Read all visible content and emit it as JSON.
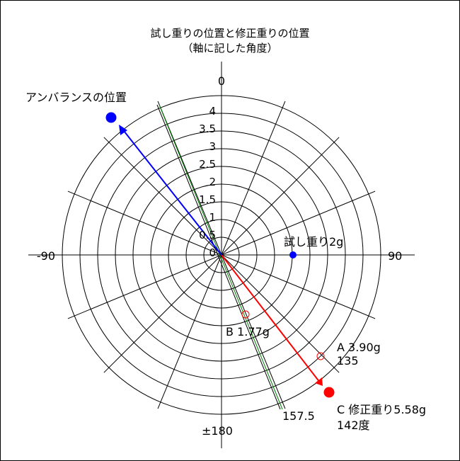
{
  "title": {
    "line1": "試し重りの位置と修正重りの位置",
    "line2": "（軸に記した角度）"
  },
  "axis_labels": {
    "top": "0",
    "left": "-90",
    "right": "90",
    "bottom": "±180"
  },
  "radial_ticks": [
    "4",
    "3.5",
    "3",
    "2.5",
    "2",
    "1.5",
    "1",
    "0.5",
    "0"
  ],
  "markers": {
    "unbalance": {
      "label": "アンバランスの位置",
      "color": "#0000ff"
    },
    "trial": {
      "label": "試し重り2g",
      "color": "#0000ff",
      "radius": 2,
      "angle": 90
    },
    "B": {
      "label": "B 1.77g",
      "color": "#ff0000"
    },
    "A": {
      "label1": "A 3.90g",
      "label2": "135",
      "color": "#ff0000"
    },
    "C": {
      "label1": "C 修正重り5.58g",
      "label2": "142度",
      "color": "#ff0000"
    },
    "line157": {
      "label": "157.5",
      "color": "#008000"
    }
  },
  "colors": {
    "grid": "#000000",
    "blue": "#0000ff",
    "red": "#ff0000",
    "green": "#008000"
  }
}
